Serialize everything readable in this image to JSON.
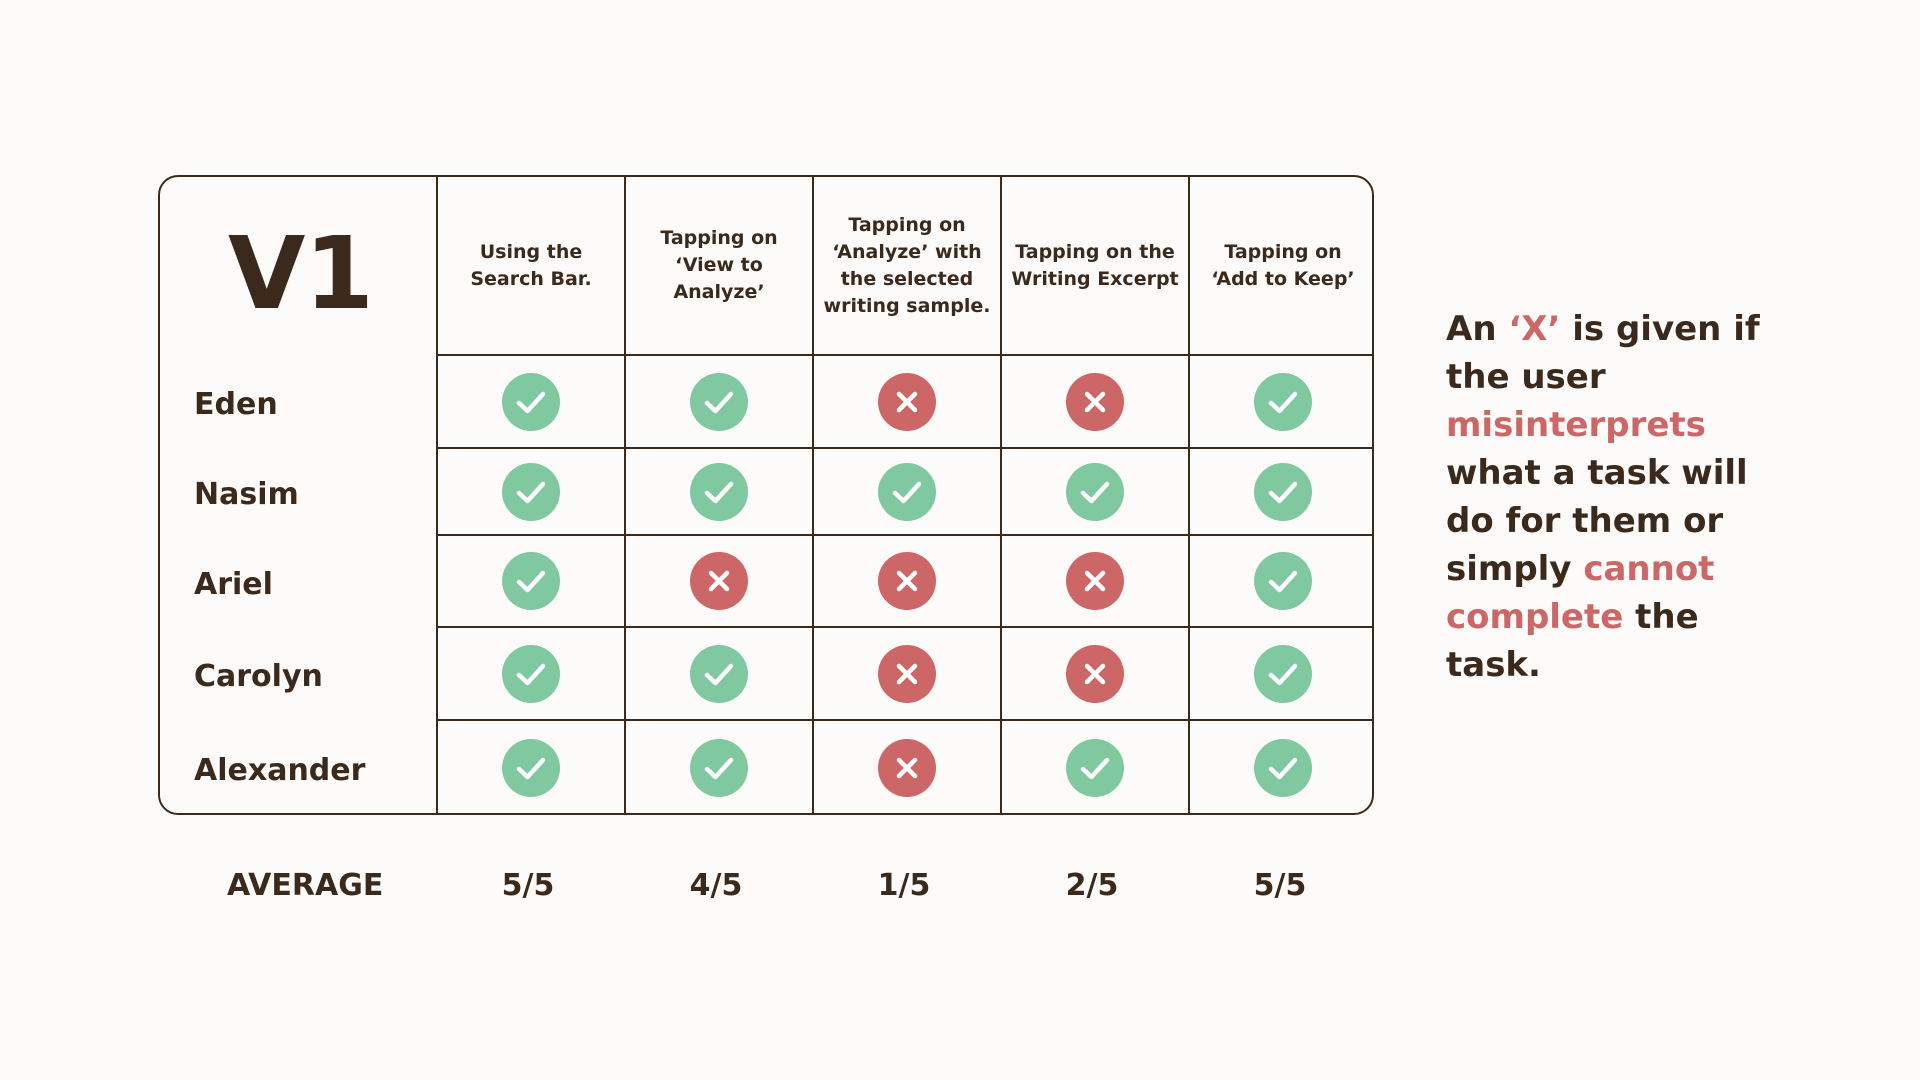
{
  "table": {
    "version_label": "V1",
    "columns": [
      "Using the Search Bar.",
      "Tapping on ‘View to Analyze’",
      "Tapping on ‘Analyze’ with the selected writing sample.",
      "Tapping on the Writing Excerpt",
      "Tapping on ‘Add to Keep’"
    ],
    "rows": [
      {
        "name": "Eden",
        "results": [
          "check",
          "check",
          "x",
          "x",
          "check"
        ]
      },
      {
        "name": "Nasim",
        "results": [
          "check",
          "check",
          "check",
          "check",
          "check"
        ]
      },
      {
        "name": "Ariel",
        "results": [
          "check",
          "x",
          "x",
          "x",
          "check"
        ]
      },
      {
        "name": "Carolyn",
        "results": [
          "check",
          "check",
          "x",
          "x",
          "check"
        ]
      },
      {
        "name": "Alexander",
        "results": [
          "check",
          "check",
          "x",
          "check",
          "check"
        ]
      }
    ],
    "average": {
      "label": "AVERAGE",
      "values": [
        "5/5",
        "4/5",
        "1/5",
        "2/5",
        "5/5"
      ]
    }
  },
  "note": {
    "parts": [
      {
        "text": "An ",
        "highlight": false
      },
      {
        "text": "‘X’",
        "highlight": true
      },
      {
        "text": " is given if the user ",
        "highlight": false
      },
      {
        "text": "misinterprets",
        "highlight": true
      },
      {
        "text": " what a task will do for them or simply ",
        "highlight": false
      },
      {
        "text": "cannot complete",
        "highlight": true
      },
      {
        "text": " the task.",
        "highlight": false
      }
    ]
  },
  "colors": {
    "check": "#7fc8a0",
    "x": "#cd6666",
    "text": "#3b2a1c",
    "highlight": "#cd6666",
    "background": "#fdfbf9"
  },
  "icons": {
    "check": "check-circle-icon",
    "x": "x-circle-icon"
  }
}
